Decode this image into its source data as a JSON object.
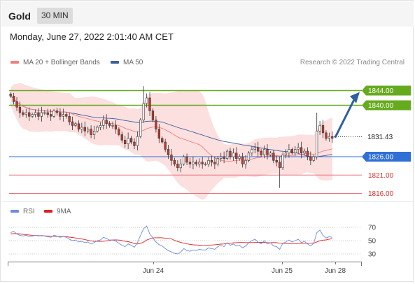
{
  "header": {
    "instrument": "Gold",
    "timeframe": "30 MIN"
  },
  "datetime": "Monday, June 27, 2022 2:01:40 AM CET",
  "legend": {
    "ma20_label": "MA 20 + Bollinger Bands",
    "ma50_label": "MA 50",
    "rsi_label": "RSI",
    "ma9_label": "9MA"
  },
  "copyright": "Research © 2022 Trading Central",
  "colors": {
    "up": "#ffffff",
    "down": "#c0392b",
    "green_level": "#66aa1e",
    "blue_level": "#2f6fd6",
    "red_level": "#e8707a",
    "ma20": "#f08080",
    "ma50": "#3e5f9e",
    "band": "#fbd9d9",
    "rsi": "#6a8ee0",
    "ma9": "#e02020"
  },
  "chart_data": [
    {
      "type": "candlestick",
      "yrange": [
        1813,
        1851
      ],
      "x_ticks": [
        "Jun 24",
        "Jun 25",
        "Jun 28"
      ],
      "levels": [
        {
          "value": 1844.0,
          "label": "1844.00",
          "kind": "resistance"
        },
        {
          "value": 1840.0,
          "label": "1840.00",
          "kind": "resistance"
        },
        {
          "value": 1831.43,
          "label": "1831.43",
          "kind": "current"
        },
        {
          "value": 1826.0,
          "label": "1826.00",
          "kind": "pivot"
        },
        {
          "value": 1821.0,
          "label": "1821.00",
          "kind": "support"
        },
        {
          "value": 1816.0,
          "label": "1816.00",
          "kind": "support"
        }
      ],
      "close": [
        1842.5,
        1841.0,
        1839.5,
        1838.0,
        1837.5,
        1838.0,
        1837.0,
        1837.5,
        1838.0,
        1837.0,
        1838.0,
        1838.0,
        1837.5,
        1837.0,
        1838.5,
        1838.0,
        1837.0,
        1837.5,
        1837.0,
        1835.5,
        1834.5,
        1835.0,
        1833.5,
        1834.0,
        1833.0,
        1833.5,
        1832.0,
        1833.0,
        1834.0,
        1834.5,
        1836.0,
        1835.0,
        1834.5,
        1834.5,
        1833.5,
        1832.0,
        1830.5,
        1829.5,
        1831.0,
        1830.0,
        1829.0,
        1831.5,
        1836.0,
        1840.5,
        1842.0,
        1838.5,
        1836.0,
        1833.5,
        1831.0,
        1830.0,
        1828.0,
        1826.5,
        1825.0,
        1824.0,
        1823.0,
        1824.0,
        1826.0,
        1824.5,
        1824.0,
        1824.5,
        1824.0,
        1824.5,
        1824.0,
        1824.0,
        1825.0,
        1824.5,
        1824.0,
        1825.5,
        1826.0,
        1825.5,
        1827.5,
        1826.0,
        1827.0,
        1825.5,
        1826.0,
        1824.0,
        1825.0,
        1827.0,
        1828.0,
        1828.5,
        1827.5,
        1826.5,
        1828.0,
        1826.5,
        1827.0,
        1825.0,
        1824.5,
        1823.0,
        1826.5,
        1827.0,
        1828.0,
        1827.0,
        1828.0,
        1828.5,
        1827.0,
        1827.5,
        1826.0,
        1825.0,
        1826.0,
        1833.0,
        1834.5,
        1832.5,
        1831.0,
        1831.5,
        1831.0
      ],
      "rsi": {
        "levels": [
          70,
          50,
          30
        ],
        "rsi": [
          62,
          64,
          60,
          58,
          57,
          58,
          56,
          57,
          58,
          57,
          58,
          57,
          56,
          55,
          58,
          57,
          55,
          56,
          55,
          52,
          50,
          51,
          48,
          49,
          47,
          48,
          45,
          47,
          50,
          51,
          55,
          53,
          51,
          51,
          49,
          46,
          43,
          41,
          45,
          43,
          40,
          47,
          58,
          68,
          72,
          60,
          54,
          48,
          44,
          42,
          38,
          35,
          33,
          31,
          30,
          33,
          38,
          35,
          34,
          36,
          35,
          37,
          36,
          36,
          39,
          38,
          37,
          41,
          43,
          41,
          47,
          43,
          45,
          42,
          43,
          39,
          42,
          47,
          50,
          52,
          48,
          45,
          50,
          45,
          47,
          42,
          41,
          37,
          46,
          48,
          51,
          48,
          50,
          52,
          47,
          49,
          45,
          42,
          46,
          62,
          66,
          58,
          54,
          56,
          55
        ],
        "ma9": [
          60,
          60.5,
          60.5,
          60,
          59.5,
          59,
          58.5,
          58,
          57.8,
          57.6,
          57.4,
          57.2,
          57,
          56.6,
          56.5,
          56.4,
          56.2,
          56,
          55.8,
          55.3,
          54.6,
          54,
          53.2,
          52.5,
          51.5,
          50.6,
          49.6,
          48.9,
          48.8,
          48.8,
          49,
          49.7,
          50.3,
          51,
          51.1,
          50.8,
          50,
          49.1,
          48.4,
          47.3,
          45.8,
          45,
          45.9,
          47.9,
          50.8,
          52.7,
          54.1,
          54.3,
          54.4,
          54.2,
          53.8,
          53.3,
          52.6,
          50.4,
          48.7,
          47.3,
          46.1,
          45.2,
          44.4,
          43.7,
          43.5,
          43.2,
          42.8,
          42.7,
          43,
          43.4,
          43.8,
          44.3,
          44.7,
          45.1,
          45.7,
          46.1,
          46.7,
          46.9,
          47.2,
          47.2,
          47.1,
          47.1,
          47.1,
          47.2,
          47.3,
          47.4,
          47.3,
          47.1,
          47,
          47.2,
          46.8,
          46.2,
          46,
          45.8,
          45.8,
          45.6,
          45.6,
          45.6,
          45.7,
          45.9,
          46,
          46.1,
          46.3,
          48,
          49.9,
          50.7,
          51.2,
          52.2,
          53
        ]
      }
    }
  ]
}
